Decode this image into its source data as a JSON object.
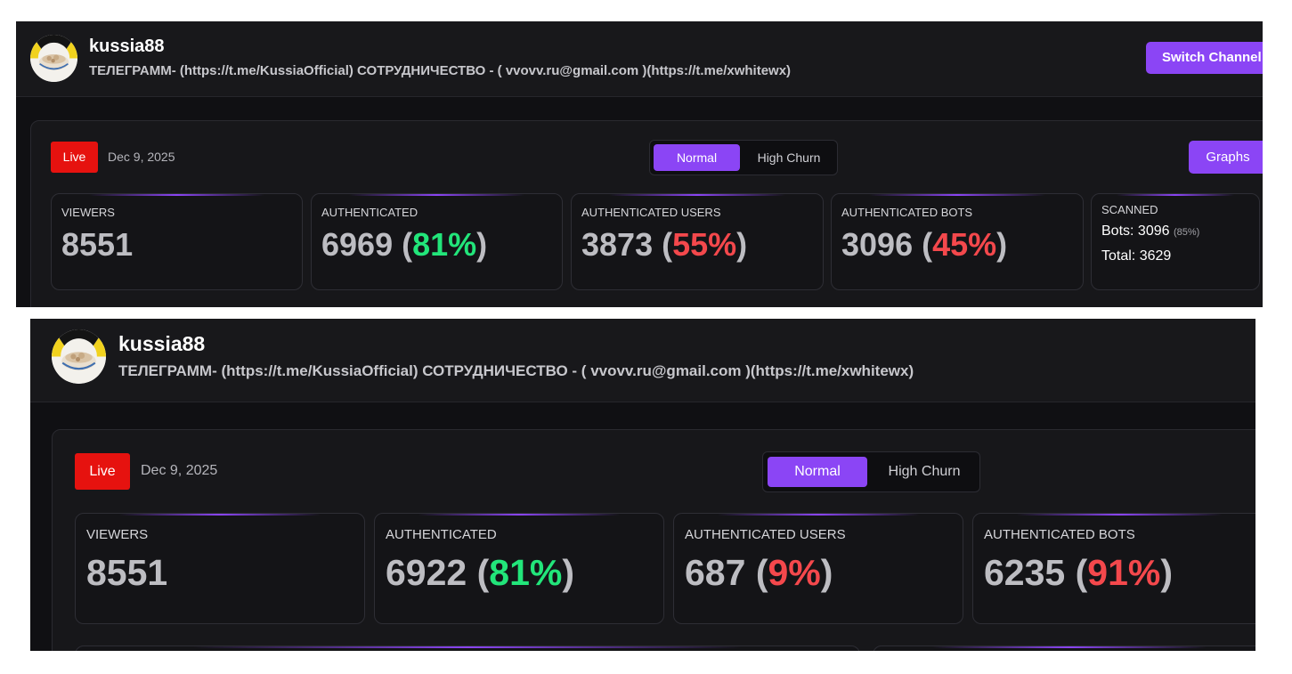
{
  "top": {
    "channel_name": "kussia88",
    "channel_description": "ТЕЛЕГРАММ- (https://t.me/KussiaOfficial) СОТРУДНИЧЕСТВО - ( vvovv.ru@gmail.com )(https://t.me/xwhitewx)",
    "switch_channel_label": "Switch Channel",
    "live_label": "Live",
    "date": "Dec 9, 2025",
    "mode_normal_label": "Normal",
    "mode_high_churn_label": "High Churn",
    "active_mode": "Normal",
    "graphs_label": "Graphs",
    "cards": {
      "viewers": {
        "label": "VIEWERS",
        "value": "8551"
      },
      "authenticated": {
        "label": "AUTHENTICATED",
        "value": "6969",
        "open": "(",
        "pct": "81%",
        "close": ")"
      },
      "auth_users": {
        "label": "AUTHENTICATED USERS",
        "value": "3873",
        "open": "(",
        "pct": "55%",
        "close": ")"
      },
      "auth_bots": {
        "label": "AUTHENTICATED BOTS",
        "value": "3096",
        "open": "(",
        "pct": "45%",
        "close": ")"
      }
    },
    "scanned": {
      "label": "SCANNED",
      "bots_label": "Bots:",
      "bots_value": "3096",
      "bots_pct": "(85%)",
      "total_label": "Total:",
      "total_value": "3629"
    }
  },
  "bottom": {
    "channel_name": "kussia88",
    "channel_description": "ТЕЛЕГРАММ- (https://t.me/KussiaOfficial) СОТРУДНИЧЕСТВО - ( vvovv.ru@gmail.com )(https://t.me/xwhitewx)",
    "live_label": "Live",
    "date": "Dec 9, 2025",
    "mode_normal_label": "Normal",
    "mode_high_churn_label": "High Churn",
    "active_mode": "Normal",
    "cards": {
      "viewers": {
        "label": "VIEWERS",
        "value": "8551"
      },
      "authenticated": {
        "label": "AUTHENTICATED",
        "value": "6922",
        "open": "(",
        "pct": "81%",
        "close": ")"
      },
      "auth_users": {
        "label": "AUTHENTICATED USERS",
        "value": "687",
        "open": "(",
        "pct": "9%",
        "close": ")"
      },
      "auth_bots": {
        "label": "AUTHENTICATED BOTS",
        "value": "6235",
        "open": "(",
        "pct": "91%",
        "close": ")"
      }
    }
  },
  "colors": {
    "accent": "#8b45f5",
    "live": "#e6120f",
    "positive": "#22e57a",
    "negative": "#f4484c",
    "background": "#101013"
  }
}
